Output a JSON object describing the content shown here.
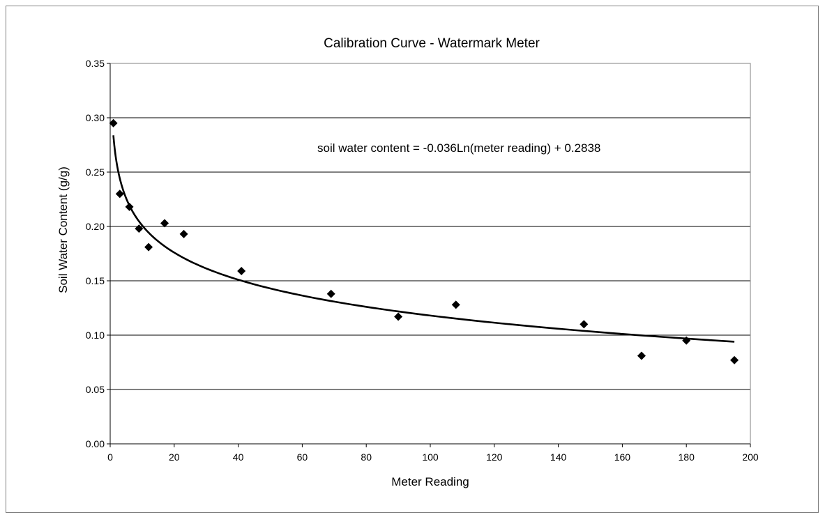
{
  "chart_data": {
    "type": "scatter",
    "title": "Calibration Curve - Watermark Meter",
    "xlabel": "Meter Reading",
    "ylabel": "Soil Water Content (g/g)",
    "xlim": [
      0,
      200
    ],
    "ylim": [
      0,
      0.35
    ],
    "x_ticks": [
      0,
      20,
      40,
      60,
      80,
      100,
      120,
      140,
      160,
      180,
      200
    ],
    "y_ticks": [
      0.0,
      0.05,
      0.1,
      0.15,
      0.2,
      0.25,
      0.3,
      0.35
    ],
    "y_tick_labels": [
      "0.00",
      "0.05",
      "0.10",
      "0.15",
      "0.20",
      "0.25",
      "0.30",
      "0.35"
    ],
    "grid": "horizontal",
    "marker": "diamond",
    "x": [
      1,
      3,
      6,
      9,
      12,
      17,
      23,
      41,
      69,
      90,
      108,
      148,
      166,
      180,
      195
    ],
    "y": [
      0.295,
      0.23,
      0.218,
      0.198,
      0.181,
      0.203,
      0.193,
      0.159,
      0.138,
      0.117,
      0.128,
      0.11,
      0.081,
      0.095,
      0.077
    ],
    "trendline": {
      "type": "logarithmic",
      "a": -0.036,
      "b": 0.2838,
      "x_range": [
        1,
        195
      ],
      "equation_label": "soil water content = -0.036Ln(meter reading) + 0.2838"
    },
    "colors": {
      "marker": "#000000",
      "trendline": "#000000",
      "grid": "#000000"
    }
  }
}
